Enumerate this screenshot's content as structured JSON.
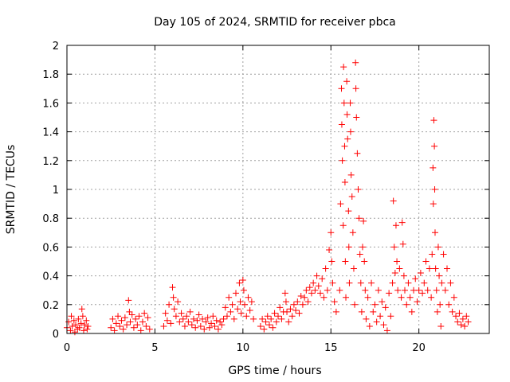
{
  "chart_data": {
    "type": "scatter",
    "title": "Day 105 of 2024, SRMTID for receiver pbca",
    "xlabel": "GPS time / hours",
    "ylabel": "SRMTID / TECUs",
    "xlim": [
      0,
      24
    ],
    "ylim": [
      0,
      2
    ],
    "xticks": [
      0,
      5,
      10,
      15,
      20
    ],
    "xtick_labels": [
      "0",
      "5",
      "10",
      "15",
      "20"
    ],
    "yticks": [
      0,
      0.2,
      0.4,
      0.6,
      0.8,
      1,
      1.2,
      1.4,
      1.6,
      1.8,
      2
    ],
    "ytick_labels": [
      "0",
      "0.2",
      "0.4",
      "0.6",
      "0.8",
      "1",
      "1.2",
      "1.4",
      "1.6",
      "1.8",
      "2"
    ],
    "grid": true,
    "marker": "+",
    "color": "#ff0000",
    "series": [
      {
        "name": "SRMTID",
        "points": [
          [
            0.0,
            0.04
          ],
          [
            0.1,
            0.08
          ],
          [
            0.2,
            0.02
          ],
          [
            0.25,
            0.12
          ],
          [
            0.3,
            0.05
          ],
          [
            0.4,
            0.09
          ],
          [
            0.45,
            0.01
          ],
          [
            0.5,
            0.06
          ],
          [
            0.6,
            0.03
          ],
          [
            0.65,
            0.1
          ],
          [
            0.7,
            0.04
          ],
          [
            0.8,
            0.07
          ],
          [
            0.85,
            0.17
          ],
          [
            0.9,
            0.12
          ],
          [
            0.95,
            0.02
          ],
          [
            1.0,
            0.06
          ],
          [
            1.1,
            0.09
          ],
          [
            1.15,
            0.03
          ],
          [
            1.2,
            0.05
          ],
          [
            2.5,
            0.04
          ],
          [
            2.6,
            0.1
          ],
          [
            2.7,
            0.02
          ],
          [
            2.8,
            0.07
          ],
          [
            2.9,
            0.12
          ],
          [
            3.0,
            0.05
          ],
          [
            3.1,
            0.09
          ],
          [
            3.2,
            0.03
          ],
          [
            3.3,
            0.11
          ],
          [
            3.4,
            0.06
          ],
          [
            3.5,
            0.23
          ],
          [
            3.55,
            0.15
          ],
          [
            3.6,
            0.08
          ],
          [
            3.7,
            0.13
          ],
          [
            3.8,
            0.04
          ],
          [
            3.9,
            0.1
          ],
          [
            4.0,
            0.06
          ],
          [
            4.1,
            0.12
          ],
          [
            4.2,
            0.02
          ],
          [
            4.3,
            0.08
          ],
          [
            4.4,
            0.14
          ],
          [
            4.5,
            0.05
          ],
          [
            4.6,
            0.11
          ],
          [
            4.7,
            0.03
          ],
          [
            5.5,
            0.05
          ],
          [
            5.6,
            0.14
          ],
          [
            5.7,
            0.09
          ],
          [
            5.8,
            0.2
          ],
          [
            5.9,
            0.07
          ],
          [
            6.0,
            0.32
          ],
          [
            6.05,
            0.25
          ],
          [
            6.1,
            0.17
          ],
          [
            6.2,
            0.12
          ],
          [
            6.3,
            0.22
          ],
          [
            6.4,
            0.08
          ],
          [
            6.5,
            0.14
          ],
          [
            6.6,
            0.1
          ],
          [
            6.7,
            0.05
          ],
          [
            6.8,
            0.12
          ],
          [
            6.9,
            0.08
          ],
          [
            7.0,
            0.15
          ],
          [
            7.1,
            0.06
          ],
          [
            7.2,
            0.1
          ],
          [
            7.3,
            0.04
          ],
          [
            7.4,
            0.09
          ],
          [
            7.5,
            0.13
          ],
          [
            7.6,
            0.05
          ],
          [
            7.7,
            0.1
          ],
          [
            7.8,
            0.03
          ],
          [
            7.9,
            0.08
          ],
          [
            8.0,
            0.11
          ],
          [
            8.1,
            0.04
          ],
          [
            8.2,
            0.07
          ],
          [
            8.3,
            0.12
          ],
          [
            8.4,
            0.05
          ],
          [
            8.5,
            0.09
          ],
          [
            8.6,
            0.03
          ],
          [
            8.7,
            0.08
          ],
          [
            8.8,
            0.06
          ],
          [
            8.9,
            0.1
          ],
          [
            9.0,
            0.18
          ],
          [
            9.1,
            0.12
          ],
          [
            9.2,
            0.25
          ],
          [
            9.3,
            0.15
          ],
          [
            9.4,
            0.2
          ],
          [
            9.5,
            0.1
          ],
          [
            9.6,
            0.28
          ],
          [
            9.7,
            0.17
          ],
          [
            9.8,
            0.35
          ],
          [
            9.85,
            0.22
          ],
          [
            9.9,
            0.14
          ],
          [
            10.0,
            0.37
          ],
          [
            10.05,
            0.3
          ],
          [
            10.1,
            0.2
          ],
          [
            10.2,
            0.12
          ],
          [
            10.3,
            0.25
          ],
          [
            10.4,
            0.16
          ],
          [
            10.5,
            0.22
          ],
          [
            10.6,
            0.1
          ],
          [
            11.0,
            0.05
          ],
          [
            11.1,
            0.1
          ],
          [
            11.2,
            0.03
          ],
          [
            11.3,
            0.08
          ],
          [
            11.4,
            0.12
          ],
          [
            11.5,
            0.06
          ],
          [
            11.6,
            0.1
          ],
          [
            11.7,
            0.04
          ],
          [
            11.8,
            0.14
          ],
          [
            11.9,
            0.08
          ],
          [
            12.0,
            0.12
          ],
          [
            12.1,
            0.18
          ],
          [
            12.2,
            0.1
          ],
          [
            12.3,
            0.15
          ],
          [
            12.4,
            0.28
          ],
          [
            12.45,
            0.22
          ],
          [
            12.5,
            0.15
          ],
          [
            12.6,
            0.08
          ],
          [
            12.7,
            0.17
          ],
          [
            12.8,
            0.12
          ],
          [
            12.9,
            0.2
          ],
          [
            13.0,
            0.16
          ],
          [
            13.1,
            0.22
          ],
          [
            13.2,
            0.14
          ],
          [
            13.3,
            0.26
          ],
          [
            13.4,
            0.2
          ],
          [
            13.5,
            0.25
          ],
          [
            13.6,
            0.3
          ],
          [
            13.7,
            0.22
          ],
          [
            13.8,
            0.32
          ],
          [
            13.9,
            0.28
          ],
          [
            14.0,
            0.35
          ],
          [
            14.1,
            0.3
          ],
          [
            14.2,
            0.4
          ],
          [
            14.3,
            0.33
          ],
          [
            14.4,
            0.28
          ],
          [
            14.5,
            0.38
          ],
          [
            14.6,
            0.25
          ],
          [
            14.7,
            0.45
          ],
          [
            14.8,
            0.3
          ],
          [
            14.9,
            0.58
          ],
          [
            15.0,
            0.7
          ],
          [
            15.05,
            0.5
          ],
          [
            15.1,
            0.35
          ],
          [
            15.2,
            0.22
          ],
          [
            15.3,
            0.15
          ],
          [
            15.5,
            0.3
          ],
          [
            15.55,
            0.9
          ],
          [
            15.6,
            1.7
          ],
          [
            15.62,
            1.45
          ],
          [
            15.65,
            1.2
          ],
          [
            15.7,
            0.75
          ],
          [
            15.72,
            1.85
          ],
          [
            15.75,
            1.6
          ],
          [
            15.78,
            1.3
          ],
          [
            15.8,
            1.05
          ],
          [
            15.82,
            0.5
          ],
          [
            15.85,
            0.25
          ],
          [
            15.9,
            1.75
          ],
          [
            15.92,
            1.52
          ],
          [
            15.95,
            1.35
          ],
          [
            16.0,
            0.85
          ],
          [
            16.02,
            0.6
          ],
          [
            16.05,
            0.35
          ],
          [
            16.1,
            1.6
          ],
          [
            16.12,
            1.4
          ],
          [
            16.15,
            1.1
          ],
          [
            16.2,
            0.95
          ],
          [
            16.25,
            0.7
          ],
          [
            16.3,
            0.45
          ],
          [
            16.35,
            0.2
          ],
          [
            16.4,
            1.88
          ],
          [
            16.42,
            1.7
          ],
          [
            16.45,
            1.5
          ],
          [
            16.5,
            1.25
          ],
          [
            16.55,
            1.0
          ],
          [
            16.6,
            0.8
          ],
          [
            16.65,
            0.55
          ],
          [
            16.7,
            0.35
          ],
          [
            16.75,
            0.15
          ],
          [
            16.8,
            0.6
          ],
          [
            16.85,
            0.78
          ],
          [
            16.9,
            0.5
          ],
          [
            16.95,
            0.3
          ],
          [
            17.0,
            0.1
          ],
          [
            17.1,
            0.25
          ],
          [
            17.2,
            0.05
          ],
          [
            17.3,
            0.35
          ],
          [
            17.4,
            0.15
          ],
          [
            17.5,
            0.2
          ],
          [
            17.6,
            0.08
          ],
          [
            17.7,
            0.3
          ],
          [
            17.8,
            0.12
          ],
          [
            17.9,
            0.22
          ],
          [
            18.0,
            0.06
          ],
          [
            18.1,
            0.18
          ],
          [
            18.2,
            0.02
          ],
          [
            18.3,
            0.28
          ],
          [
            18.4,
            0.12
          ],
          [
            18.5,
            0.35
          ],
          [
            18.55,
            0.92
          ],
          [
            18.6,
            0.6
          ],
          [
            18.65,
            0.42
          ],
          [
            18.7,
            0.75
          ],
          [
            18.75,
            0.5
          ],
          [
            18.8,
            0.3
          ],
          [
            18.9,
            0.45
          ],
          [
            19.0,
            0.25
          ],
          [
            19.05,
            0.77
          ],
          [
            19.1,
            0.62
          ],
          [
            19.15,
            0.4
          ],
          [
            19.2,
            0.3
          ],
          [
            19.3,
            0.2
          ],
          [
            19.4,
            0.35
          ],
          [
            19.5,
            0.25
          ],
          [
            19.6,
            0.15
          ],
          [
            19.7,
            0.3
          ],
          [
            19.8,
            0.38
          ],
          [
            19.9,
            0.22
          ],
          [
            20.0,
            0.3
          ],
          [
            20.1,
            0.42
          ],
          [
            20.2,
            0.28
          ],
          [
            20.3,
            0.35
          ],
          [
            20.4,
            0.5
          ],
          [
            20.5,
            0.3
          ],
          [
            20.6,
            0.45
          ],
          [
            20.7,
            0.25
          ],
          [
            20.75,
            0.55
          ],
          [
            20.8,
            1.15
          ],
          [
            20.82,
            0.9
          ],
          [
            20.85,
            1.48
          ],
          [
            20.88,
            1.3
          ],
          [
            20.9,
            1.0
          ],
          [
            20.92,
            0.7
          ],
          [
            20.95,
            0.45
          ],
          [
            21.0,
            0.3
          ],
          [
            21.05,
            0.15
          ],
          [
            21.1,
            0.6
          ],
          [
            21.15,
            0.4
          ],
          [
            21.2,
            0.2
          ],
          [
            21.25,
            0.05
          ],
          [
            21.3,
            0.35
          ],
          [
            21.4,
            0.55
          ],
          [
            21.5,
            0.3
          ],
          [
            21.6,
            0.45
          ],
          [
            21.7,
            0.2
          ],
          [
            21.8,
            0.35
          ],
          [
            21.9,
            0.15
          ],
          [
            22.0,
            0.25
          ],
          [
            22.1,
            0.12
          ],
          [
            22.2,
            0.08
          ],
          [
            22.3,
            0.14
          ],
          [
            22.4,
            0.06
          ],
          [
            22.5,
            0.1
          ],
          [
            22.6,
            0.05
          ],
          [
            22.7,
            0.12
          ],
          [
            22.8,
            0.08
          ]
        ]
      }
    ]
  }
}
